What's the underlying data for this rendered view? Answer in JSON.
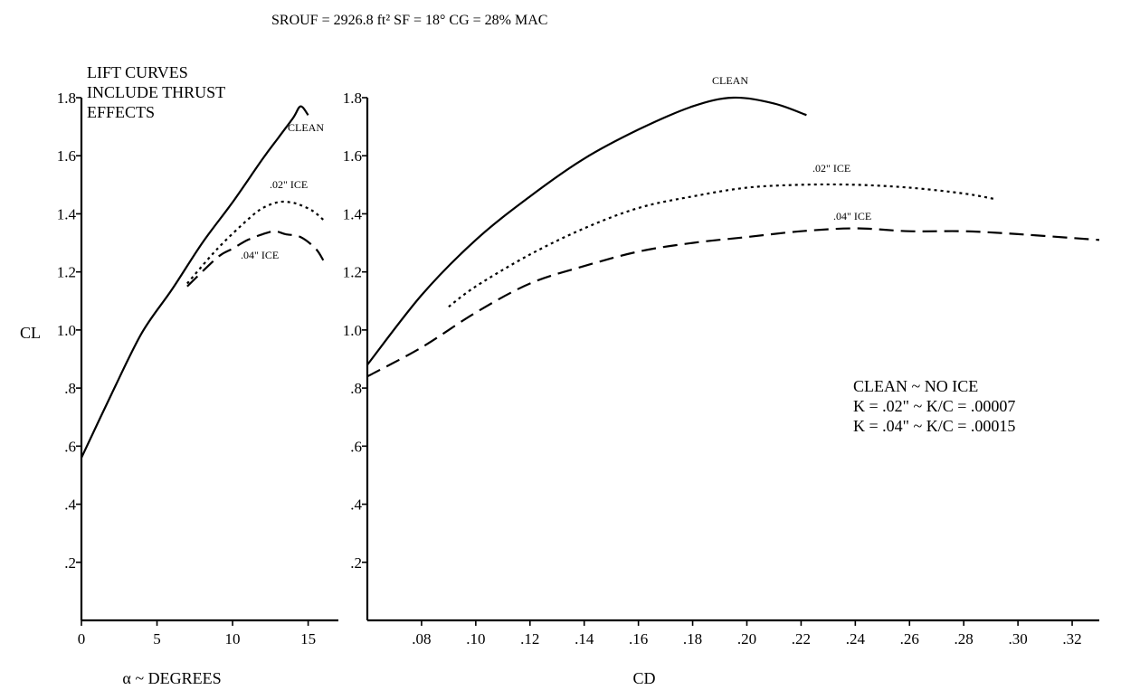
{
  "header": {
    "conditions": "SROUF = 2926.8 ft² SF = 18° CG = 28% MAC"
  },
  "ylabel": "CL",
  "note_lines": [
    "LIFT CURVES",
    "INCLUDE THRUST",
    "EFFECTS"
  ],
  "legend_text": [
    "CLEAN ~ NO ICE",
    "K = .02\" ~ K/C = .00007",
    "K = .04\" ~ K/C = .00015"
  ],
  "chart_data": [
    {
      "type": "line",
      "xlabel": "α ~ DEGREES",
      "ylabel": "CL",
      "xlim": [
        0,
        17
      ],
      "ylim": [
        0,
        1.8
      ],
      "x_ticks": [
        0,
        5,
        10,
        15
      ],
      "x_tick_labels": [
        "0",
        "5",
        "10",
        "15"
      ],
      "y_ticks": [
        0.2,
        0.4,
        0.6,
        0.8,
        1.0,
        1.2,
        1.4,
        1.6,
        1.8
      ],
      "y_tick_labels": [
        ".2",
        ".4",
        ".6",
        ".8",
        "1.0",
        "1.2",
        "1.4",
        "1.6",
        "1.8"
      ],
      "series": [
        {
          "name": "CLEAN",
          "style": "solid",
          "x": [
            0,
            2,
            4,
            6,
            8,
            10,
            12,
            13,
            14,
            14.5,
            15
          ],
          "y": [
            0.56,
            0.78,
            0.99,
            1.14,
            1.3,
            1.44,
            1.59,
            1.66,
            1.73,
            1.77,
            1.74
          ]
        },
        {
          "name": ".02\" ICE",
          "style": "dotted",
          "x": [
            7,
            9,
            11,
            12,
            13,
            13.8,
            14.5,
            15.3,
            16
          ],
          "y": [
            1.16,
            1.28,
            1.38,
            1.42,
            1.44,
            1.44,
            1.43,
            1.41,
            1.38
          ]
        },
        {
          "name": ".04\" ICE",
          "style": "dashed",
          "x": [
            7,
            9,
            10,
            11,
            12,
            12.8,
            13.5,
            14.5,
            15.5,
            16
          ],
          "y": [
            1.15,
            1.25,
            1.28,
            1.31,
            1.33,
            1.34,
            1.33,
            1.32,
            1.28,
            1.24
          ]
        }
      ]
    },
    {
      "type": "line",
      "xlabel": "CD",
      "ylabel": "",
      "xlim": [
        0.06,
        0.33
      ],
      "ylim": [
        0,
        1.8
      ],
      "x_ticks": [
        0.08,
        0.1,
        0.12,
        0.14,
        0.16,
        0.18,
        0.2,
        0.22,
        0.24,
        0.26,
        0.28,
        0.3,
        0.32
      ],
      "x_tick_labels": [
        ".08",
        ".10",
        ".12",
        ".14",
        ".16",
        ".18",
        ".20",
        ".22",
        ".24",
        ".26",
        ".28",
        ".30",
        ".32"
      ],
      "y_ticks": [
        0.2,
        0.4,
        0.6,
        0.8,
        1.0,
        1.2,
        1.4,
        1.6,
        1.8
      ],
      "y_tick_labels": [
        ".2",
        ".4",
        ".6",
        ".8",
        "1.0",
        "1.2",
        "1.4",
        "1.6",
        "1.8"
      ],
      "series": [
        {
          "name": "CLEAN",
          "style": "solid",
          "x": [
            0.06,
            0.08,
            0.1,
            0.12,
            0.14,
            0.16,
            0.18,
            0.195,
            0.21,
            0.222
          ],
          "y": [
            0.88,
            1.12,
            1.31,
            1.46,
            1.59,
            1.69,
            1.77,
            1.8,
            1.78,
            1.74
          ]
        },
        {
          "name": ".02\" ICE",
          "style": "dotted",
          "x": [
            0.09,
            0.1,
            0.12,
            0.14,
            0.16,
            0.18,
            0.2,
            0.22,
            0.24,
            0.26,
            0.28,
            0.292
          ],
          "y": [
            1.08,
            1.15,
            1.26,
            1.35,
            1.42,
            1.46,
            1.49,
            1.5,
            1.5,
            1.49,
            1.47,
            1.45
          ]
        },
        {
          "name": ".04\" ICE",
          "style": "dashed",
          "x": [
            0.06,
            0.08,
            0.1,
            0.12,
            0.14,
            0.16,
            0.18,
            0.2,
            0.22,
            0.24,
            0.26,
            0.28,
            0.3,
            0.33
          ],
          "y": [
            0.84,
            0.94,
            1.06,
            1.16,
            1.22,
            1.27,
            1.3,
            1.32,
            1.34,
            1.35,
            1.34,
            1.34,
            1.33,
            1.31
          ]
        }
      ]
    }
  ]
}
